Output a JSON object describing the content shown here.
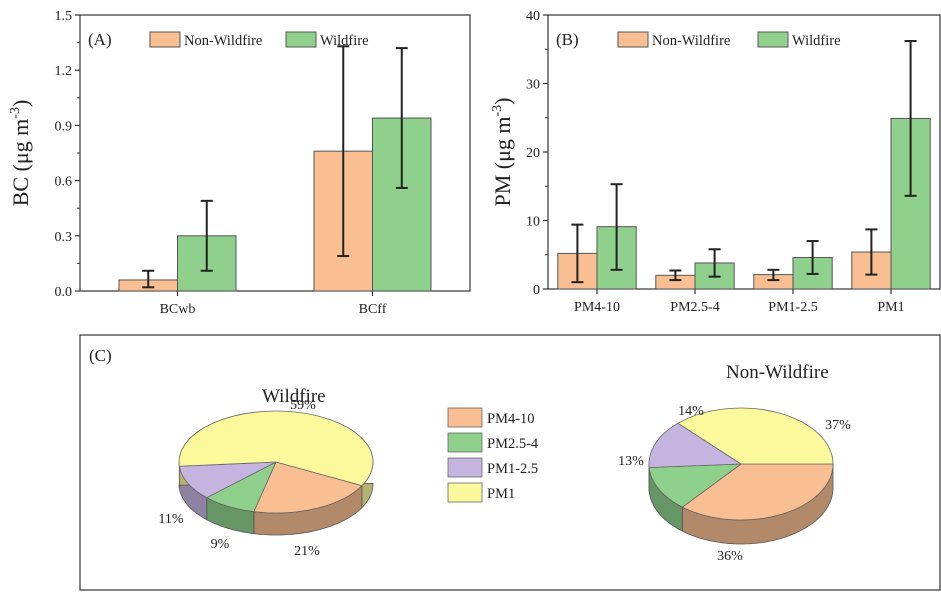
{
  "colors": {
    "non_wildfire": "#f9bf92",
    "wildfire": "#8ed08c",
    "PM4-10": "#f9bf92",
    "PM2.5-4": "#8ed08c",
    "PM1-2.5": "#c5b3e0",
    "PM1": "#fbf99c"
  },
  "chart_data": [
    {
      "type": "bar",
      "panel": "(A)",
      "ylabel_main": "BC (μg m",
      "ylabel_sup": "-3",
      "ylabel_end": ")",
      "categories": [
        "BCwb",
        "BCff"
      ],
      "ylim": [
        0,
        1.5
      ],
      "yticks": [
        "0.0",
        "0.3",
        "0.6",
        "0.9",
        "1.2",
        "1.5"
      ],
      "legend": [
        "Non-Wildfire",
        "Wildfire"
      ],
      "series": [
        {
          "name": "Non-Wildfire",
          "values": [
            0.06,
            0.76
          ],
          "err_low": [
            0.02,
            0.19
          ],
          "err_high": [
            0.11,
            1.33
          ]
        },
        {
          "name": "Wildfire",
          "values": [
            0.3,
            0.94
          ],
          "err_low": [
            0.11,
            0.56
          ],
          "err_high": [
            0.49,
            1.32
          ]
        }
      ]
    },
    {
      "type": "bar",
      "panel": "(B)",
      "ylabel_main": "PM (μg m",
      "ylabel_sup": "-3",
      "ylabel_end": ")",
      "categories": [
        "PM4-10",
        "PM2.5-4",
        "PM1-2.5",
        "PM1"
      ],
      "ylim": [
        0,
        40
      ],
      "yticks": [
        "0",
        "10",
        "20",
        "30",
        "40"
      ],
      "legend": [
        "Non-Wildfire",
        "Wildfire"
      ],
      "series": [
        {
          "name": "Non-Wildfire",
          "values": [
            5.2,
            2.0,
            2.1,
            5.4
          ],
          "err_low": [
            1.0,
            1.3,
            1.3,
            2.1
          ],
          "err_high": [
            9.4,
            2.7,
            2.8,
            8.7
          ]
        },
        {
          "name": "Wildfire",
          "values": [
            9.1,
            3.8,
            4.6,
            24.9
          ],
          "err_low": [
            2.8,
            1.8,
            2.2,
            13.6
          ],
          "err_high": [
            15.3,
            5.8,
            7.0,
            36.2
          ]
        }
      ]
    },
    {
      "type": "pie",
      "panel": "(C)",
      "legend": [
        "PM4-10",
        "PM2.5-4",
        "PM1-2.5",
        "PM1"
      ],
      "pies": [
        {
          "title": "Wildfire",
          "slices": [
            {
              "name": "PM4-10",
              "value": 21,
              "label": "21%"
            },
            {
              "name": "PM2.5-4",
              "value": 9,
              "label": "9%"
            },
            {
              "name": "PM1-2.5",
              "value": 11,
              "label": "11%"
            },
            {
              "name": "PM1",
              "value": 59,
              "label": "59%"
            }
          ]
        },
        {
          "title": "Non-Wildfire",
          "slices": [
            {
              "name": "PM4-10",
              "value": 36,
              "label": "36%"
            },
            {
              "name": "PM2.5-4",
              "value": 13,
              "label": "13%"
            },
            {
              "name": "PM1-2.5",
              "value": 14,
              "label": "14%"
            },
            {
              "name": "PM1",
              "value": 37,
              "label": "37%"
            }
          ]
        }
      ]
    }
  ]
}
